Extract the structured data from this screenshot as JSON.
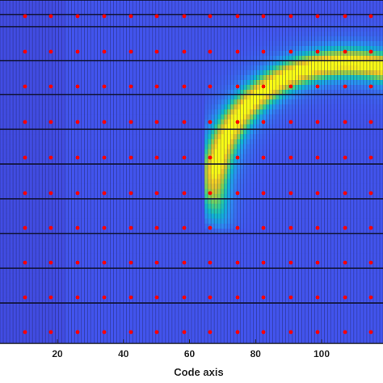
{
  "chart_data": {
    "type": "heatmap",
    "title": "",
    "xlabel": "Code axis",
    "ylabel": "",
    "xlim": [
      0,
      116
    ],
    "xticks": [
      20,
      40,
      60,
      80,
      100
    ],
    "xtick_labels": [
      "20",
      "40",
      "60",
      "80",
      "100"
    ],
    "rows": 10,
    "marker_x": [
      10,
      18,
      26,
      34,
      42,
      50,
      58,
      66,
      74,
      82,
      90,
      98,
      106,
      114
    ],
    "marker_color": "#ff0000",
    "colormap": "parula",
    "colormap_stops": [
      "#3e26a8",
      "#4256f0",
      "#2d8ff6",
      "#10b3d7",
      "#2ccf9c",
      "#7cd35a",
      "#c7c733",
      "#f5c927",
      "#f9fb15"
    ],
    "background_level": 0.12,
    "ridge_levels": [
      0.3,
      0.72,
      0.78,
      0.7,
      0.68,
      0.38,
      0.22,
      0.13,
      0.12,
      0.12
    ]
  }
}
